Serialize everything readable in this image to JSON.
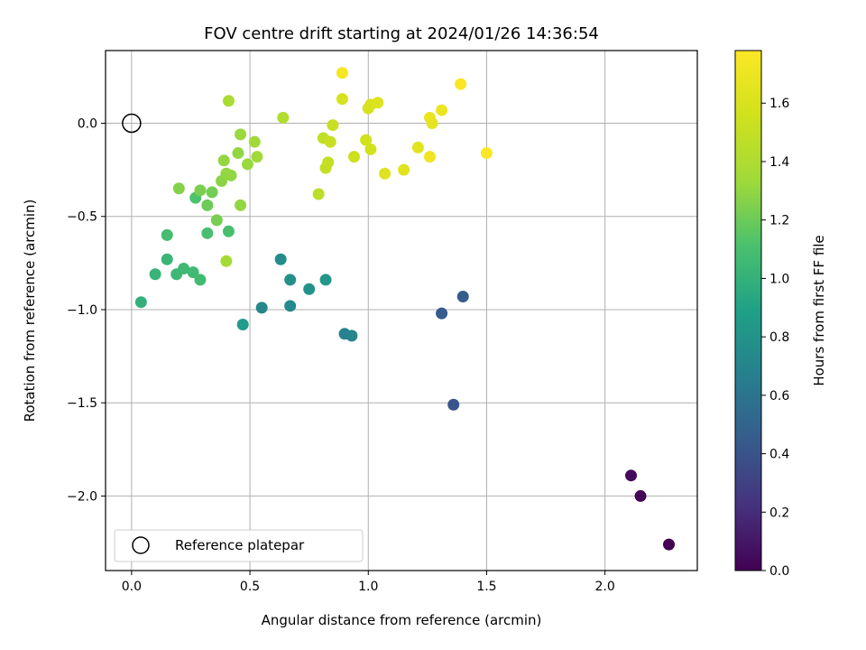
{
  "chart_data": {
    "type": "scatter",
    "title": "FOV centre drift starting at 2024/01/26 14:36:54",
    "xlabel": "Angular distance from reference (arcmin)",
    "ylabel": "Rotation from reference (arcmin)",
    "xlim": [
      -0.11,
      2.39
    ],
    "ylim": [
      -2.4,
      0.39
    ],
    "x_ticks": [
      0.0,
      0.5,
      1.0,
      1.5,
      2.0
    ],
    "x_tick_labels": [
      "0.0",
      "0.5",
      "1.0",
      "1.5",
      "2.0"
    ],
    "y_ticks": [
      0.0,
      -0.5,
      -1.0,
      -1.5,
      -2.0
    ],
    "y_tick_labels": [
      "0.0",
      "−0.5",
      "−1.0",
      "−1.5",
      "−2.0"
    ],
    "grid": true,
    "colormap": "viridis",
    "colorbar": {
      "label": "Hours from first FF file",
      "range": [
        0.0,
        1.78
      ],
      "ticks": [
        0.0,
        0.2,
        0.4,
        0.6,
        0.8,
        1.0,
        1.2,
        1.4,
        1.6
      ],
      "tick_labels": [
        "0.0",
        "0.2",
        "0.4",
        "0.6",
        "0.8",
        "1.0",
        "1.2",
        "1.4",
        "1.6"
      ]
    },
    "legend": {
      "position": "lower-left",
      "entries": [
        {
          "label": "Reference platepar",
          "marker": "open-circle"
        }
      ]
    },
    "reference_point": {
      "x": 0.0,
      "y": 0.0
    },
    "series": [
      {
        "points": [
          [
            2.27,
            -2.26,
            0.0
          ],
          [
            2.15,
            -2.0,
            0.02
          ],
          [
            2.11,
            -1.89,
            0.04
          ],
          [
            1.36,
            -1.51,
            0.4
          ],
          [
            1.31,
            -1.02,
            0.44
          ],
          [
            1.4,
            -0.93,
            0.46
          ],
          [
            0.9,
            -1.13,
            0.68
          ],
          [
            0.93,
            -1.14,
            0.7
          ],
          [
            0.55,
            -0.99,
            0.72
          ],
          [
            0.67,
            -0.98,
            0.74
          ],
          [
            0.63,
            -0.73,
            0.76
          ],
          [
            0.67,
            -0.84,
            0.78
          ],
          [
            0.75,
            -0.89,
            0.8
          ],
          [
            0.82,
            -0.84,
            0.82
          ],
          [
            0.47,
            -1.08,
            0.86
          ],
          [
            0.04,
            -0.96,
            1.0
          ],
          [
            0.1,
            -0.81,
            1.02
          ],
          [
            0.15,
            -0.73,
            1.03
          ],
          [
            0.19,
            -0.81,
            1.04
          ],
          [
            0.22,
            -0.78,
            1.05
          ],
          [
            0.26,
            -0.8,
            1.06
          ],
          [
            0.29,
            -0.84,
            1.07
          ],
          [
            0.15,
            -0.6,
            1.08
          ],
          [
            0.32,
            -0.59,
            1.1
          ],
          [
            0.41,
            -0.58,
            1.1
          ],
          [
            0.27,
            -0.4,
            1.12
          ],
          [
            0.32,
            -0.44,
            1.2
          ],
          [
            0.34,
            -0.37,
            1.22
          ],
          [
            0.36,
            -0.52,
            1.23
          ],
          [
            0.29,
            -0.36,
            1.24
          ],
          [
            0.2,
            -0.35,
            1.26
          ],
          [
            0.38,
            -0.31,
            1.28
          ],
          [
            0.4,
            -0.27,
            1.3
          ],
          [
            0.42,
            -0.28,
            1.3
          ],
          [
            0.39,
            -0.2,
            1.3
          ],
          [
            0.45,
            -0.16,
            1.3
          ],
          [
            0.46,
            -0.44,
            1.3
          ],
          [
            0.46,
            -0.06,
            1.32
          ],
          [
            0.49,
            -0.22,
            1.32
          ],
          [
            0.52,
            -0.1,
            1.34
          ],
          [
            0.53,
            -0.18,
            1.34
          ],
          [
            0.4,
            -0.74,
            1.36
          ],
          [
            0.41,
            0.12,
            1.38
          ],
          [
            0.64,
            0.03,
            1.42
          ],
          [
            0.79,
            -0.38,
            1.46
          ],
          [
            0.81,
            -0.08,
            1.48
          ],
          [
            0.82,
            -0.24,
            1.5
          ],
          [
            0.83,
            -0.21,
            1.5
          ],
          [
            0.84,
            -0.1,
            1.52
          ],
          [
            0.85,
            -0.01,
            1.52
          ],
          [
            0.94,
            -0.18,
            1.54
          ],
          [
            0.99,
            -0.09,
            1.56
          ],
          [
            1.01,
            -0.14,
            1.56
          ],
          [
            0.89,
            0.13,
            1.58
          ],
          [
            1.0,
            0.08,
            1.58
          ],
          [
            1.01,
            0.1,
            1.6
          ],
          [
            1.04,
            0.11,
            1.62
          ],
          [
            1.07,
            -0.27,
            1.62
          ],
          [
            1.15,
            -0.25,
            1.64
          ],
          [
            1.21,
            -0.13,
            1.64
          ],
          [
            1.27,
            0.0,
            1.66
          ],
          [
            1.26,
            0.03,
            1.68
          ],
          [
            1.31,
            0.07,
            1.7
          ],
          [
            1.26,
            -0.18,
            1.72
          ],
          [
            0.89,
            0.27,
            1.74
          ],
          [
            1.39,
            0.21,
            1.76
          ],
          [
            1.5,
            -0.16,
            1.78
          ]
        ]
      }
    ]
  }
}
